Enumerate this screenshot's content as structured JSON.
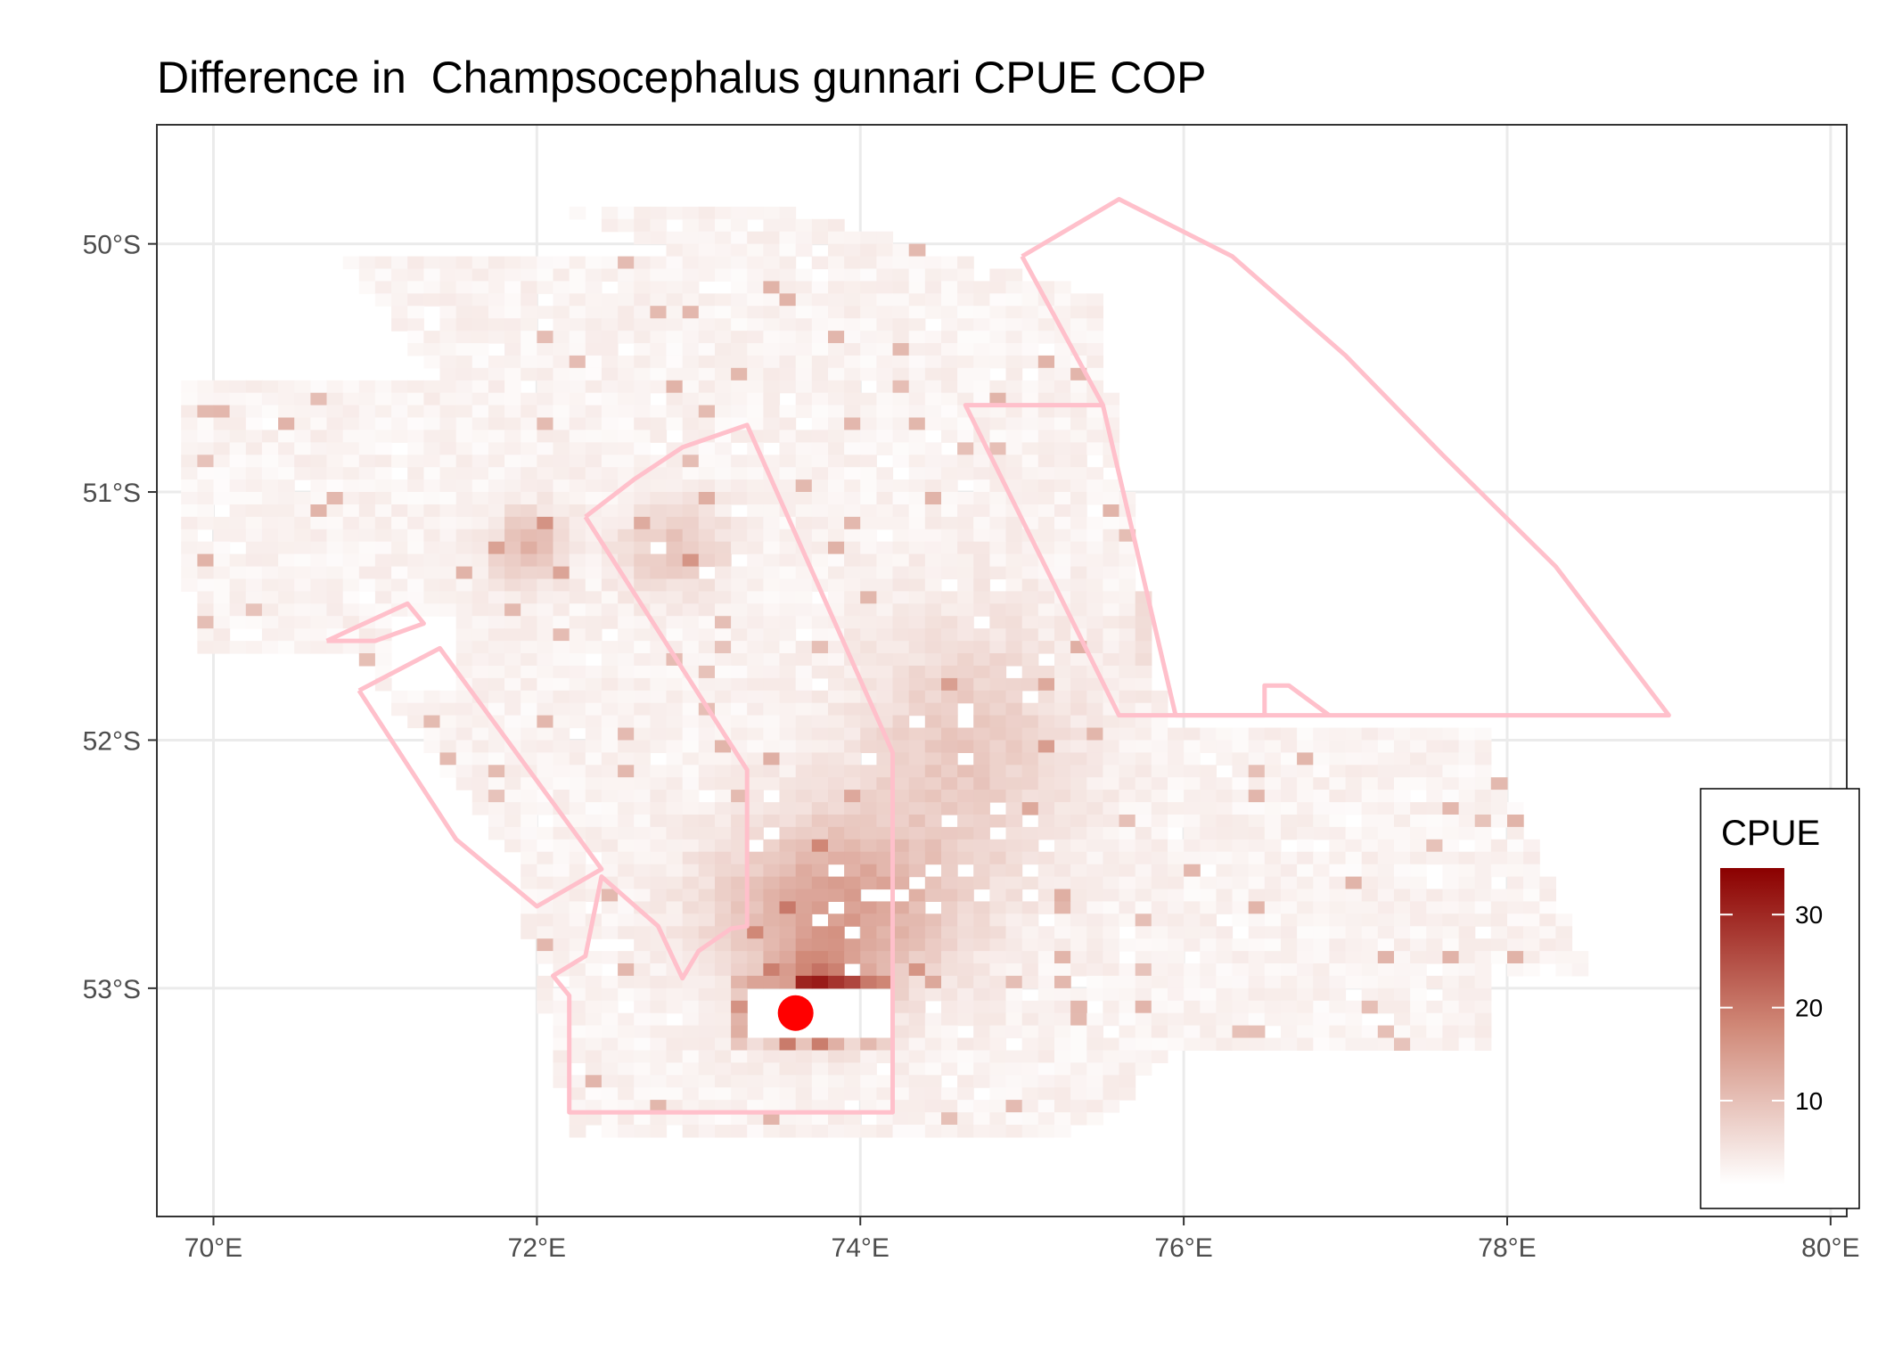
{
  "title": "Difference in  Champsocephalus gunnari CPUE COP",
  "colors": {
    "low": "#ffffff",
    "high": "#8b0000",
    "boundary": "#ffc0cb",
    "marker": "#ff0000",
    "grid": "#ebebeb",
    "panel_border": "#333333"
  },
  "map": {
    "lon_range": [
      69.65,
      80.1
    ],
    "lat_range": [
      -53.92,
      -49.52
    ],
    "x_ticks": [
      {
        "lon": 70,
        "label": "70°E"
      },
      {
        "lon": 72,
        "label": "72°E"
      },
      {
        "lon": 74,
        "label": "74°E"
      },
      {
        "lon": 76,
        "label": "76°E"
      },
      {
        "lon": 78,
        "label": "78°E"
      },
      {
        "lon": 80,
        "label": "80°E"
      }
    ],
    "y_ticks": [
      {
        "lat": -50,
        "label": "50°S"
      },
      {
        "lat": -51,
        "label": "51°S"
      },
      {
        "lat": -52,
        "label": "52°S"
      },
      {
        "lat": -53,
        "label": "53°S"
      }
    ],
    "marker": {
      "lon": 73.6,
      "lat": -53.1
    },
    "boundaries": [
      [
        [
          70.7,
          -51.6
        ],
        [
          71.2,
          -51.45
        ],
        [
          71.3,
          -51.53
        ],
        [
          71.0,
          -51.6
        ],
        [
          70.7,
          -51.6
        ]
      ],
      [
        [
          70.9,
          -51.8
        ],
        [
          71.4,
          -51.63
        ],
        [
          72.4,
          -52.52
        ],
        [
          72.0,
          -52.67
        ],
        [
          71.5,
          -52.4
        ],
        [
          70.9,
          -51.8
        ]
      ],
      [
        [
          72.3,
          -51.1
        ],
        [
          72.6,
          -50.95
        ],
        [
          72.9,
          -50.82
        ],
        [
          73.3,
          -50.73
        ],
        [
          74.2,
          -52.05
        ],
        [
          74.2,
          -53.5
        ],
        [
          72.2,
          -53.5
        ],
        [
          72.2,
          -53.03
        ],
        [
          72.1,
          -52.95
        ],
        [
          72.3,
          -52.87
        ],
        [
          72.4,
          -52.55
        ],
        [
          72.75,
          -52.75
        ],
        [
          72.9,
          -52.96
        ],
        [
          73.0,
          -52.85
        ],
        [
          73.2,
          -52.76
        ],
        [
          73.3,
          -52.75
        ],
        [
          73.3,
          -52.12
        ],
        [
          72.3,
          -51.1
        ]
      ],
      [
        [
          75.0,
          -50.05
        ],
        [
          75.6,
          -49.82
        ],
        [
          76.3,
          -50.05
        ],
        [
          77.0,
          -50.45
        ],
        [
          77.6,
          -50.85
        ],
        [
          78.3,
          -51.3
        ],
        [
          79.0,
          -51.9
        ],
        [
          75.6,
          -51.9
        ],
        [
          74.65,
          -50.65
        ],
        [
          75.5,
          -50.65
        ],
        [
          75.0,
          -50.05
        ]
      ],
      [
        [
          75.5,
          -50.65
        ],
        [
          75.95,
          -51.9
        ],
        [
          76.5,
          -51.9
        ],
        [
          76.5,
          -51.78
        ],
        [
          76.65,
          -51.78
        ],
        [
          76.9,
          -51.9
        ]
      ]
    ]
  },
  "legend": {
    "title": "CPUE",
    "range": [
      1,
      35
    ],
    "ticks": [
      {
        "value": 10,
        "label": "10"
      },
      {
        "value": 20,
        "label": "20"
      },
      {
        "value": 30,
        "label": "30"
      }
    ]
  }
}
